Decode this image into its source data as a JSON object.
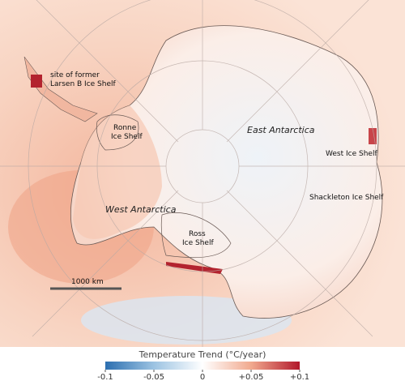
{
  "map": {
    "labels": [
      {
        "lines": [
          "site of former",
          "Larsen B Ice Shelf"
        ]
      },
      {
        "lines": [
          "Ronne",
          "Ice Shelf"
        ]
      },
      {
        "lines": [
          "East Antarctica"
        ]
      },
      {
        "lines": [
          "West Ice Shelf"
        ]
      },
      {
        "lines": [
          "Shackleton Ice Shelf"
        ]
      },
      {
        "lines": [
          "West Antarctica"
        ]
      },
      {
        "lines": [
          "Ross",
          "Ice Shelf"
        ]
      }
    ],
    "scale_bar": "1000 km"
  },
  "colorbar": {
    "title": "Temperature Trend (°C/year)",
    "lim": [
      -0.1,
      0.1
    ],
    "colors": [
      "#2c6fb0",
      "#9cc3e2",
      "#ffffff",
      "#f1a98e",
      "#b2182b"
    ],
    "ticks": [
      -0.1,
      -0.05,
      0,
      {
        "value": 0.05,
        "label": "+0.05"
      },
      {
        "value": 0.1,
        "label": "+0.1"
      }
    ]
  }
}
